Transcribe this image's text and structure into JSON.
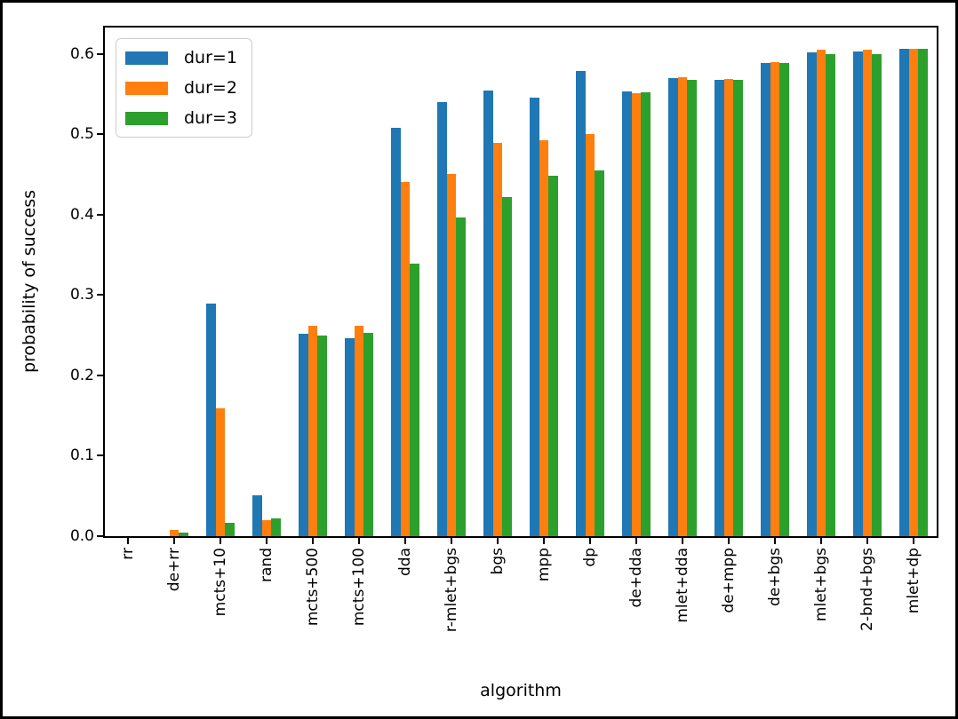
{
  "chart_data": {
    "type": "bar",
    "title": "",
    "xlabel": "algorithm",
    "ylabel": "probability of success",
    "grid": false,
    "legend_position": "upper left",
    "ylim": [
      0,
      0.633
    ],
    "yticks": [
      {
        "value": 0.0,
        "label": "0.0"
      },
      {
        "value": 0.1,
        "label": "0.1"
      },
      {
        "value": 0.2,
        "label": "0.2"
      },
      {
        "value": 0.3,
        "label": "0.3"
      },
      {
        "value": 0.4,
        "label": "0.4"
      },
      {
        "value": 0.5,
        "label": "0.5"
      },
      {
        "value": 0.6,
        "label": "0.6"
      }
    ],
    "categories": [
      "rr",
      "de+rr",
      "mcts+10",
      "rand",
      "mcts+500",
      "mcts+100",
      "dda",
      "r-mlet+bgs",
      "bgs",
      "mpp",
      "dp",
      "de+dda",
      "mlet+dda",
      "de+mpp",
      "de+bgs",
      "mlet+bgs",
      "2-bnd+bgs",
      "mlet+dp"
    ],
    "series": [
      {
        "name": "dur=1",
        "color": "#1f77b4",
        "values": [
          0.0,
          0.0,
          0.29,
          0.051,
          0.252,
          0.246,
          0.508,
          0.54,
          0.555,
          0.546,
          0.579,
          0.554,
          0.57,
          0.568,
          0.589,
          0.602,
          0.603,
          0.606
        ]
      },
      {
        "name": "dur=2",
        "color": "#ff7f0e",
        "values": [
          0.0,
          0.008,
          0.159,
          0.02,
          0.262,
          0.262,
          0.441,
          0.451,
          0.489,
          0.493,
          0.5,
          0.551,
          0.571,
          0.569,
          0.59,
          0.605,
          0.605,
          0.606
        ]
      },
      {
        "name": "dur=3",
        "color": "#2ca02c",
        "values": [
          0.0,
          0.004,
          0.017,
          0.022,
          0.25,
          0.253,
          0.339,
          0.397,
          0.422,
          0.449,
          0.455,
          0.552,
          0.568,
          0.568,
          0.589,
          0.6,
          0.6,
          0.606
        ]
      }
    ]
  }
}
